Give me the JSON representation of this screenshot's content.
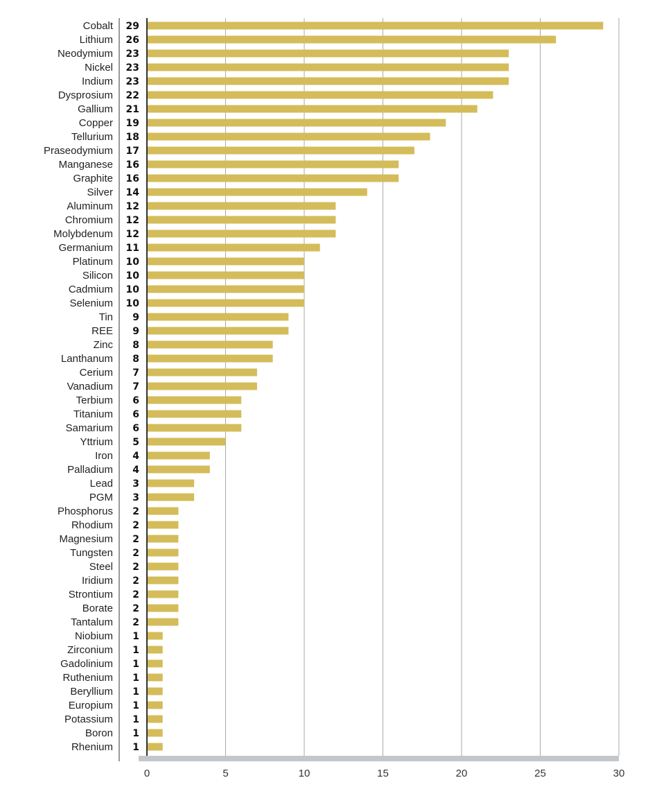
{
  "chart_data": {
    "type": "bar",
    "orientation": "horizontal",
    "title": "",
    "xlabel": "",
    "ylabel": "",
    "xlim": [
      0,
      30
    ],
    "xticks": [
      0,
      5,
      10,
      15,
      20,
      25,
      30
    ],
    "grid": true,
    "bar_color": "#d4bc5a",
    "categories": [
      "Cobalt",
      "Lithium",
      "Neodymium",
      "Nickel",
      "Indium",
      "Dysprosium",
      "Gallium",
      "Copper",
      "Tellurium",
      "Praseodymium",
      "Manganese",
      "Graphite",
      "Silver",
      "Aluminum",
      "Chromium",
      "Molybdenum",
      "Germanium",
      "Platinum",
      "Silicon",
      "Cadmium",
      "Selenium",
      "Tin",
      "REE",
      "Zinc",
      "Lanthanum",
      "Cerium",
      "Vanadium",
      "Terbium",
      "Titanium",
      "Samarium",
      "Yttrium",
      "Iron",
      "Palladium",
      "Lead",
      "PGM",
      "Phosphorus",
      "Rhodium",
      "Magnesium",
      "Tungsten",
      "Steel",
      "Iridium",
      "Strontium",
      "Borate",
      "Tantalum",
      "Niobium",
      "Zirconium",
      "Gadolinium",
      "Ruthenium",
      "Beryllium",
      "Europium",
      "Potassium",
      "Boron",
      "Rhenium"
    ],
    "values": [
      29,
      26,
      23,
      23,
      23,
      22,
      21,
      19,
      18,
      17,
      16,
      16,
      14,
      12,
      12,
      12,
      11,
      10,
      10,
      10,
      10,
      9,
      9,
      8,
      8,
      7,
      7,
      6,
      6,
      6,
      5,
      4,
      4,
      3,
      3,
      2,
      2,
      2,
      2,
      2,
      2,
      2,
      2,
      2,
      1,
      1,
      1,
      1,
      1,
      1,
      1,
      1,
      1
    ]
  }
}
